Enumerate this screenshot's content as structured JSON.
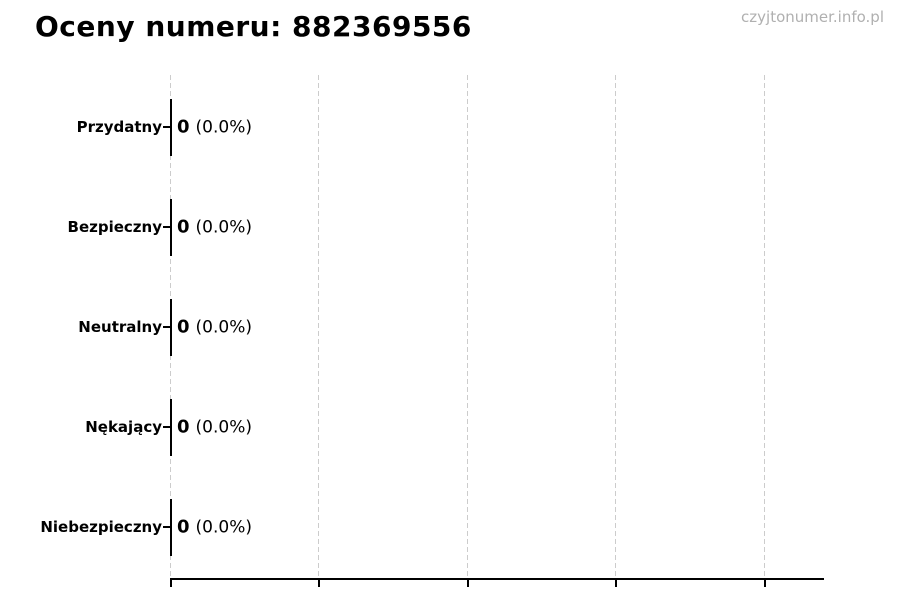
{
  "header": {
    "title": "Oceny numeru: 882369556",
    "watermark": "czyjtonumer.info.pl"
  },
  "rows": [
    {
      "label": "Przydatny",
      "value": "0",
      "pct": "(0.0%)"
    },
    {
      "label": "Bezpieczny",
      "value": "0",
      "pct": "(0.0%)"
    },
    {
      "label": "Neutralny",
      "value": "0",
      "pct": "(0.0%)"
    },
    {
      "label": "Nękający",
      "value": "0",
      "pct": "(0.0%)"
    },
    {
      "label": "Niebezpieczny",
      "value": "0",
      "pct": "(0.0%)"
    }
  ],
  "chart_data": {
    "type": "bar",
    "orientation": "horizontal",
    "title": "Oceny numeru: 882369556",
    "categories": [
      "Przydatny",
      "Bezpieczny",
      "Neutralny",
      "Nękający",
      "Niebezpieczny"
    ],
    "values": [
      0,
      0,
      0,
      0,
      0
    ],
    "value_labels": [
      "0 (0.0%)",
      "0 (0.0%)",
      "0 (0.0%)",
      "0 (0.0%)",
      "0 (0.0%)"
    ],
    "xlabel": "",
    "ylabel": "",
    "grid": true,
    "x_gridline_count": 5,
    "x_tick_labels_visible": false,
    "legend": false,
    "colors": {
      "bar_edge": "#000000",
      "grid": "#cccccc",
      "axis": "#000000",
      "title": "#000000",
      "watermark": "#b0b0b0"
    }
  }
}
